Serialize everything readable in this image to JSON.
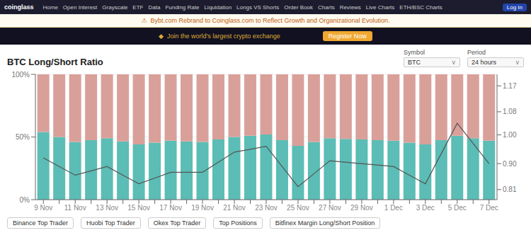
{
  "chart_data": {
    "type": "bar",
    "title": "BTC Long/Short Ratio",
    "stacked": true,
    "grid": true,
    "categories": [
      "9 Nov",
      null,
      "11 Nov",
      null,
      "13 Nov",
      null,
      "15 Nov",
      null,
      "17 Nov",
      null,
      "19 Nov",
      null,
      "21 Nov",
      null,
      "23 Nov",
      null,
      "25 Nov",
      null,
      "27 Nov",
      null,
      "29 Nov",
      null,
      "1 Dec",
      null,
      "3 Dec",
      null,
      "5 Dec",
      null,
      "7 Dec"
    ],
    "series": [
      {
        "type": "bar",
        "color": "#5bbdb5",
        "values": [
          54,
          50,
          46,
          47.5,
          49,
          46.5,
          44,
          45.5,
          47,
          46.5,
          46,
          48,
          50,
          51,
          52,
          47.5,
          43,
          46,
          49,
          48.5,
          48,
          47.5,
          47,
          45.5,
          44,
          47.5,
          51,
          49,
          47
        ]
      },
      {
        "type": "bar",
        "color": "#d9a09a",
        "values": [
          46,
          50,
          54,
          52.5,
          51,
          53.5,
          56,
          54.5,
          53,
          53.5,
          54,
          52,
          50,
          49,
          48,
          52.5,
          57,
          54,
          51,
          51.5,
          52,
          52.5,
          53,
          54.5,
          56,
          52.5,
          49,
          51,
          53
        ]
      },
      {
        "type": "line",
        "axis": "y2",
        "color": "#555555",
        "values": [
          0.92,
          0.89,
          0.86,
          0.875,
          0.89,
          0.86,
          0.83,
          0.85,
          0.87,
          0.87,
          0.87,
          0.905,
          0.94,
          0.95,
          0.96,
          0.89,
          0.82,
          0.865,
          0.91,
          0.905,
          0.9,
          0.895,
          0.89,
          0.86,
          0.83,
          0.935,
          1.04,
          0.97,
          0.9
        ]
      }
    ],
    "ylim": [
      0,
      100
    ],
    "yticks": [
      {
        "value": 0,
        "label": "0%"
      },
      {
        "value": 50,
        "label": "50%"
      },
      {
        "value": 100,
        "label": "100%"
      }
    ],
    "y2lim": [
      0.775,
      1.21
    ],
    "y2ticks": [
      0.81,
      {
        "value": 0.9,
        "label": "0.90"
      },
      {
        "value": 1.0,
        "label": "1.00"
      },
      1.08,
      1.17
    ],
    "annotations": [
      "coinglass",
      "Home",
      "Open Interest",
      "Grayscale",
      "ETF",
      "Data",
      "Funding Rate",
      "Liquidation",
      "Longs VS Shorts",
      "Order Book",
      "Charts",
      "Reviews",
      "Live Charts",
      "ETH/BSC Charts",
      "Log In",
      "⚠  Bybt.com Rebrand to Coinglass.com to Reflect Growth and Organizational Evolution.",
      "◆  Join the world's largest crypto exchange",
      "Register Now",
      "Symbol",
      "Period",
      "BTC",
      "∨",
      "24 hours",
      "∨",
      "Binance Top Trader",
      "Huobi Top Trader",
      "Okex Top Trader",
      "Top Positions",
      "Bitfinex Margin Long/Short Position"
    ]
  }
}
